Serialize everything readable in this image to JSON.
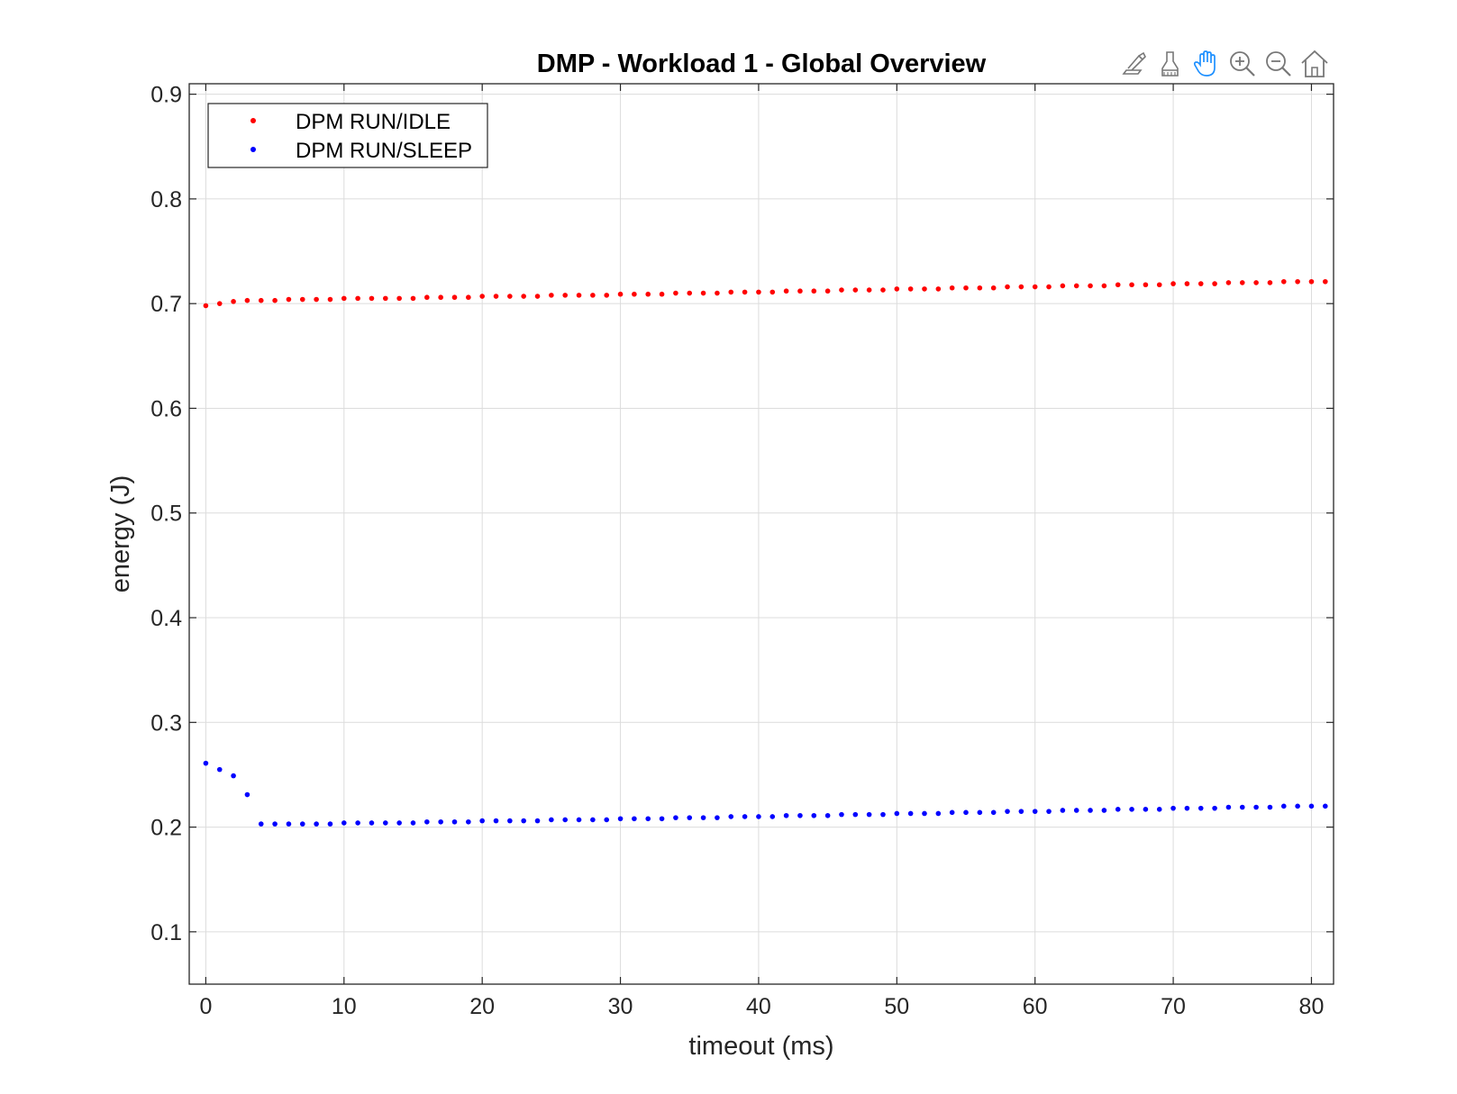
{
  "chart_data": {
    "type": "scatter",
    "title": "DMP - Workload 1 - Global Overview",
    "xlabel": "timeout (ms)",
    "ylabel": "energy (J)",
    "xlim": [
      -1.2,
      81.6
    ],
    "ylim": [
      0.05,
      0.91
    ],
    "xticks": [
      0,
      10,
      20,
      30,
      40,
      50,
      60,
      70,
      80
    ],
    "yticks": [
      0.1,
      0.2,
      0.3,
      0.4,
      0.5,
      0.6,
      0.7,
      0.8,
      0.9
    ],
    "xtick_labels": [
      "0",
      "10",
      "20",
      "30",
      "40",
      "50",
      "60",
      "70",
      "80"
    ],
    "ytick_labels": [
      "0.1",
      "0.2",
      "0.3",
      "0.4",
      "0.5",
      "0.6",
      "0.7",
      "0.8",
      "0.9"
    ],
    "grid": true,
    "legend_position": "top-left",
    "series": [
      {
        "name": "DPM RUN/IDLE",
        "color": "#ff0000",
        "x": [
          0,
          1,
          2,
          3,
          4,
          5,
          6,
          7,
          8,
          9,
          10,
          11,
          12,
          13,
          14,
          15,
          16,
          17,
          18,
          19,
          20,
          21,
          22,
          23,
          24,
          25,
          26,
          27,
          28,
          29,
          30,
          31,
          32,
          33,
          34,
          35,
          36,
          37,
          38,
          39,
          40,
          41,
          42,
          43,
          44,
          45,
          46,
          47,
          48,
          49,
          50,
          51,
          52,
          53,
          54,
          55,
          56,
          57,
          58,
          59,
          60,
          61,
          62,
          63,
          64,
          65,
          66,
          67,
          68,
          69,
          70,
          71,
          72,
          73,
          74,
          75,
          76,
          77,
          78,
          79,
          80,
          81
        ],
        "y": [
          0.698,
          0.7,
          0.702,
          0.703,
          0.703,
          0.703,
          0.704,
          0.704,
          0.704,
          0.704,
          0.705,
          0.705,
          0.705,
          0.705,
          0.705,
          0.705,
          0.706,
          0.706,
          0.706,
          0.706,
          0.707,
          0.707,
          0.707,
          0.707,
          0.707,
          0.708,
          0.708,
          0.708,
          0.708,
          0.708,
          0.709,
          0.709,
          0.709,
          0.709,
          0.71,
          0.71,
          0.71,
          0.71,
          0.711,
          0.711,
          0.711,
          0.711,
          0.712,
          0.712,
          0.712,
          0.712,
          0.713,
          0.713,
          0.713,
          0.713,
          0.714,
          0.714,
          0.714,
          0.714,
          0.715,
          0.715,
          0.715,
          0.715,
          0.716,
          0.716,
          0.716,
          0.716,
          0.717,
          0.717,
          0.717,
          0.717,
          0.718,
          0.718,
          0.718,
          0.718,
          0.719,
          0.719,
          0.719,
          0.719,
          0.72,
          0.72,
          0.72,
          0.72,
          0.721,
          0.721,
          0.721,
          0.721
        ]
      },
      {
        "name": "DPM RUN/SLEEP",
        "color": "#0000ff",
        "x": [
          0,
          1,
          2,
          3,
          4,
          5,
          6,
          7,
          8,
          9,
          10,
          11,
          12,
          13,
          14,
          15,
          16,
          17,
          18,
          19,
          20,
          21,
          22,
          23,
          24,
          25,
          26,
          27,
          28,
          29,
          30,
          31,
          32,
          33,
          34,
          35,
          36,
          37,
          38,
          39,
          40,
          41,
          42,
          43,
          44,
          45,
          46,
          47,
          48,
          49,
          50,
          51,
          52,
          53,
          54,
          55,
          56,
          57,
          58,
          59,
          60,
          61,
          62,
          63,
          64,
          65,
          66,
          67,
          68,
          69,
          70,
          71,
          72,
          73,
          74,
          75,
          76,
          77,
          78,
          79,
          80,
          81
        ],
        "y": [
          0.261,
          0.255,
          0.249,
          0.231,
          0.203,
          0.203,
          0.203,
          0.203,
          0.203,
          0.203,
          0.204,
          0.204,
          0.204,
          0.204,
          0.204,
          0.204,
          0.205,
          0.205,
          0.205,
          0.205,
          0.206,
          0.206,
          0.206,
          0.206,
          0.206,
          0.207,
          0.207,
          0.207,
          0.207,
          0.207,
          0.208,
          0.208,
          0.208,
          0.208,
          0.209,
          0.209,
          0.209,
          0.209,
          0.21,
          0.21,
          0.21,
          0.21,
          0.211,
          0.211,
          0.211,
          0.211,
          0.212,
          0.212,
          0.212,
          0.212,
          0.213,
          0.213,
          0.213,
          0.213,
          0.214,
          0.214,
          0.214,
          0.214,
          0.215,
          0.215,
          0.215,
          0.215,
          0.216,
          0.216,
          0.216,
          0.216,
          0.217,
          0.217,
          0.217,
          0.217,
          0.218,
          0.218,
          0.218,
          0.218,
          0.219,
          0.219,
          0.219,
          0.219,
          0.22,
          0.22,
          0.22,
          0.22
        ]
      }
    ]
  },
  "toolbar": {
    "icons": [
      "brush-export-icon",
      "data-tips-icon",
      "pan-hand-icon",
      "zoom-in-icon",
      "zoom-out-icon",
      "home-icon"
    ],
    "active_icon": "pan-hand-icon",
    "active_color": "#1e90ff"
  }
}
